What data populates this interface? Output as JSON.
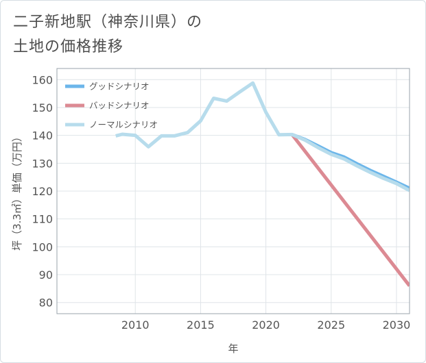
{
  "title": {
    "line1": "二子新地駅（神奈川県）の",
    "line2": "土地の価格推移"
  },
  "chart_data": {
    "type": "line",
    "xlabel": "年",
    "ylabel": "坪（3.3㎡）単価（万円）",
    "xlim": [
      2004,
      2031
    ],
    "ylim": [
      76,
      164
    ],
    "x_ticks": [
      2010,
      2015,
      2020,
      2025,
      2030
    ],
    "y_ticks": [
      80,
      90,
      100,
      110,
      120,
      130,
      140,
      150,
      160
    ],
    "grid": true,
    "legend_position": "top-left",
    "series": [
      {
        "name": "グッドシナリオ",
        "color": "#6cb6ea",
        "points": [
          [
            2022,
            140.3
          ],
          [
            2023,
            138.5
          ],
          [
            2024,
            136.2
          ],
          [
            2025,
            133.8
          ],
          [
            2026,
            132.2
          ],
          [
            2027,
            129.7
          ],
          [
            2028,
            127.4
          ],
          [
            2029,
            125.3
          ],
          [
            2030,
            123.2
          ],
          [
            2031,
            121
          ]
        ]
      },
      {
        "name": "バッドシナリオ",
        "color": "#dc8a93",
        "points": [
          [
            2022,
            140.3
          ],
          [
            2031,
            86
          ]
        ]
      },
      {
        "name": "ノーマルシナリオ",
        "color": "#b7dcec",
        "points": [
          [
            2008.5,
            139.8
          ],
          [
            2009,
            140.4
          ],
          [
            2010,
            140
          ],
          [
            2011,
            135.9
          ],
          [
            2012,
            139.8
          ],
          [
            2013,
            139.8
          ],
          [
            2014,
            141
          ],
          [
            2015,
            145.2
          ],
          [
            2016,
            153.3
          ],
          [
            2017,
            152.3
          ],
          [
            2018,
            155.6
          ],
          [
            2019,
            158.8
          ],
          [
            2020,
            148.3
          ],
          [
            2021,
            140.2
          ],
          [
            2022,
            140.3
          ],
          [
            2023,
            138.3
          ],
          [
            2024,
            135.6
          ],
          [
            2025,
            133.2
          ],
          [
            2026,
            131.5
          ],
          [
            2027,
            129
          ],
          [
            2028,
            126.7
          ],
          [
            2029,
            124.6
          ],
          [
            2030,
            122.7
          ],
          [
            2031,
            120.2
          ]
        ]
      }
    ]
  }
}
